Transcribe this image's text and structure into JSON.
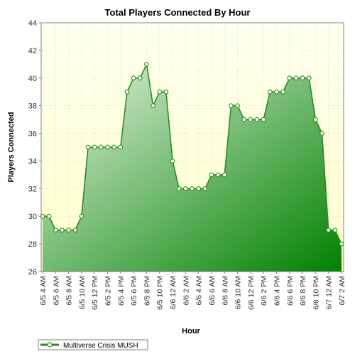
{
  "chart_data": {
    "type": "area",
    "title": "Total Players Connected By Hour",
    "xlabel": "Hour",
    "ylabel": "Players Connected",
    "ylim": [
      26,
      44
    ],
    "yticks": [
      26,
      28,
      30,
      32,
      34,
      36,
      38,
      40,
      42,
      44
    ],
    "grid": true,
    "legend_position": "bottom-left",
    "x_tick_labels": [
      "6/5 4 AM",
      "6/5 6 AM",
      "6/5 8 AM",
      "6/5 10 AM",
      "6/5 12 PM",
      "6/5 2 PM",
      "6/5 4 PM",
      "6/5 6 PM",
      "6/5 8 PM",
      "6/5 10 PM",
      "6/6 12 AM",
      "6/6 2 AM",
      "6/6 4 AM",
      "6/6 6 AM",
      "6/6 8 AM",
      "6/6 10 AM",
      "6/6 12 PM",
      "6/6 2 PM",
      "6/6 4 PM",
      "6/6 6 PM",
      "6/6 8 PM",
      "6/6 10 PM",
      "6/7 12 AM",
      "6/7 2 AM"
    ],
    "series": [
      {
        "name": "Multiverse Crisis MUSH",
        "values": [
          30,
          30,
          29,
          29,
          29,
          29,
          30,
          35,
          35,
          35,
          35,
          35,
          35,
          39,
          40,
          40,
          41,
          38,
          39,
          39,
          34,
          32,
          32,
          32,
          32,
          32,
          33,
          33,
          33,
          38,
          38,
          37,
          37,
          37,
          37,
          39,
          39,
          39,
          40,
          40,
          40,
          40,
          37,
          36,
          29,
          29,
          28
        ]
      }
    ],
    "colors": {
      "line": "#2e8b1e",
      "fill_light": "#e6f4e2",
      "fill_dark": "#008000",
      "plot_bg_top": "#fffff0",
      "plot_bg_bottom": "#ffffcc",
      "grid": "#c8c8b4",
      "marker_fill": "#ffffff"
    }
  }
}
